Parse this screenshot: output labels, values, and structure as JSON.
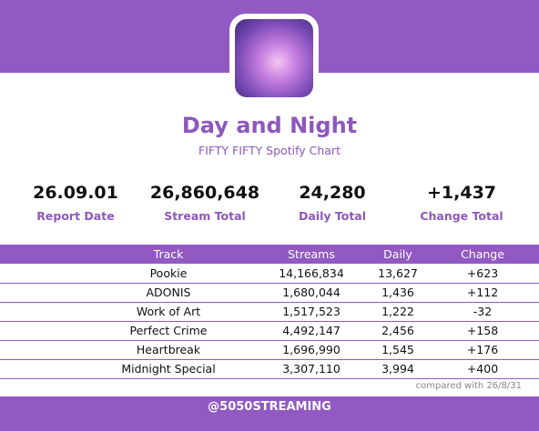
{
  "header": {
    "title": "Day and Night",
    "subtitle": "FIFTY FIFTY Spotify Chart"
  },
  "stats": [
    {
      "value": "26.09.01",
      "label": "Report Date"
    },
    {
      "value": "26,860,648",
      "label": "Stream Total"
    },
    {
      "value": "24,280",
      "label": "Daily Total"
    },
    {
      "value": "+1,437",
      "label": "Change Total"
    }
  ],
  "table": {
    "columns": [
      "Track",
      "Streams",
      "Daily",
      "Change"
    ],
    "rows": [
      [
        "Pookie",
        "14,166,834",
        "13,627",
        "+623"
      ],
      [
        "ADONIS",
        "1,680,044",
        "1,436",
        "+112"
      ],
      [
        "Work of Art",
        "1,517,523",
        "1,222",
        "-32"
      ],
      [
        "Perfect Crime",
        "4,492,147",
        "2,456",
        "+158"
      ],
      [
        "Heartbreak",
        "1,696,990",
        "1,545",
        "+176"
      ],
      [
        "Midnight Special",
        "3,307,110",
        "3,994",
        "+400"
      ]
    ]
  },
  "footnote": "compared with 26/8/31",
  "footer": "@5050STREAMING"
}
